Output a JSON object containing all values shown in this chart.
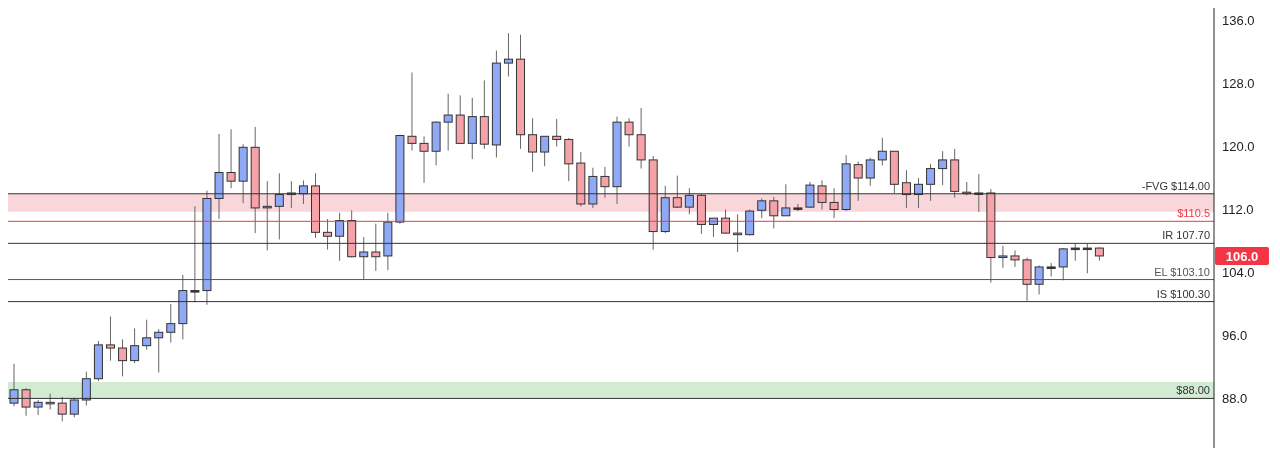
{
  "chart_data": {
    "type": "candlestick",
    "categories": [
      null,
      null,
      null,
      null,
      null,
      null,
      null,
      null,
      null,
      null,
      null,
      null,
      null,
      null,
      null,
      null,
      null,
      null,
      null,
      null,
      null,
      null,
      null,
      null,
      null,
      null,
      null,
      null,
      null,
      null,
      null,
      null,
      null,
      null,
      null,
      null,
      null,
      null,
      null,
      null,
      null,
      null,
      null,
      null,
      null,
      null,
      null,
      null,
      null,
      null,
      null,
      null,
      null,
      null,
      null,
      null,
      null,
      null,
      null,
      null,
      null,
      null,
      null,
      null,
      null,
      null,
      null,
      null,
      null,
      null,
      null,
      null,
      null,
      null,
      null,
      null,
      null,
      null,
      null,
      null,
      null,
      null,
      null,
      null,
      null,
      null,
      null,
      null,
      null,
      null,
      null,
      null,
      null,
      null,
      null,
      null,
      null,
      null,
      null,
      null
    ],
    "ohlc": [
      [
        87.4,
        92.4,
        87.0,
        89.1
      ],
      [
        89.1,
        89.3,
        85.8,
        86.9
      ],
      [
        86.9,
        87.8,
        85.9,
        87.5
      ],
      [
        87.5,
        88.6,
        86.6,
        87.4
      ],
      [
        87.4,
        88.2,
        85.1,
        86.0
      ],
      [
        86.0,
        88.1,
        85.6,
        87.8
      ],
      [
        87.8,
        91.4,
        87.1,
        90.5
      ],
      [
        90.5,
        95.3,
        90.2,
        94.8
      ],
      [
        94.8,
        98.4,
        92.8,
        94.4
      ],
      [
        94.4,
        95.5,
        90.8,
        92.8
      ],
      [
        92.8,
        96.9,
        92.5,
        94.7
      ],
      [
        94.7,
        98.0,
        94.2,
        95.7
      ],
      [
        95.7,
        96.8,
        91.3,
        96.4
      ],
      [
        96.4,
        100.0,
        95.1,
        97.5
      ],
      [
        97.5,
        103.7,
        95.5,
        101.7
      ],
      [
        101.7,
        112.4,
        100.2,
        101.7
      ],
      [
        101.7,
        114.4,
        99.9,
        113.4
      ],
      [
        113.4,
        121.6,
        110.8,
        116.7
      ],
      [
        116.7,
        122.2,
        114.7,
        115.6
      ],
      [
        115.6,
        120.3,
        112.8,
        119.9
      ],
      [
        119.9,
        122.5,
        109.0,
        112.2
      ],
      [
        112.3,
        115.6,
        106.8,
        112.4
      ],
      [
        112.4,
        116.6,
        108.2,
        113.9
      ],
      [
        113.9,
        115.6,
        112.2,
        114.1
      ],
      [
        114.0,
        115.7,
        112.7,
        115.0
      ],
      [
        115.0,
        116.6,
        108.4,
        109.1
      ],
      [
        109.1,
        110.8,
        106.9,
        108.6
      ],
      [
        108.6,
        111.6,
        105.5,
        110.6
      ],
      [
        110.6,
        111.9,
        105.9,
        106.0
      ],
      [
        106.0,
        108.5,
        103.1,
        106.6
      ],
      [
        106.6,
        110.2,
        104.2,
        106.0
      ],
      [
        106.1,
        111.6,
        104.3,
        110.4
      ],
      [
        110.4,
        121.5,
        110.2,
        121.4
      ],
      [
        121.3,
        129.4,
        119.5,
        120.4
      ],
      [
        120.4,
        121.3,
        115.4,
        119.4
      ],
      [
        119.4,
        123.2,
        117.6,
        123.1
      ],
      [
        123.1,
        126.7,
        119.5,
        124.0
      ],
      [
        124.0,
        126.5,
        120.4,
        120.4
      ],
      [
        120.4,
        126.2,
        118.4,
        123.8
      ],
      [
        123.8,
        128.4,
        119.7,
        120.3
      ],
      [
        120.2,
        132.2,
        118.6,
        130.6
      ],
      [
        130.6,
        134.4,
        128.9,
        131.1
      ],
      [
        131.1,
        134.2,
        119.7,
        121.5
      ],
      [
        121.5,
        123.6,
        116.8,
        119.3
      ],
      [
        119.3,
        121.3,
        117.5,
        121.3
      ],
      [
        121.3,
        123.5,
        120.0,
        120.9
      ],
      [
        120.9,
        121.1,
        115.6,
        117.8
      ],
      [
        117.9,
        119.3,
        112.4,
        112.7
      ],
      [
        112.7,
        117.3,
        112.2,
        116.2
      ],
      [
        116.2,
        117.4,
        113.5,
        114.9
      ],
      [
        114.9,
        123.8,
        112.7,
        123.1
      ],
      [
        123.1,
        123.6,
        120.0,
        121.5
      ],
      [
        121.5,
        124.9,
        117.2,
        118.3
      ],
      [
        118.3,
        118.8,
        106.9,
        109.2
      ],
      [
        109.2,
        115.0,
        109.0,
        113.5
      ],
      [
        113.5,
        116.3,
        112.2,
        112.3
      ],
      [
        112.3,
        114.7,
        111.4,
        113.8
      ],
      [
        113.8,
        114.0,
        108.9,
        110.1
      ],
      [
        110.1,
        110.9,
        108.5,
        110.9
      ],
      [
        110.9,
        112.0,
        108.9,
        109.0
      ],
      [
        109.0,
        111.4,
        106.6,
        108.8
      ],
      [
        108.8,
        112.0,
        108.7,
        111.8
      ],
      [
        111.9,
        113.4,
        110.9,
        113.1
      ],
      [
        113.1,
        113.6,
        109.6,
        111.2
      ],
      [
        111.2,
        115.2,
        111.2,
        112.2
      ],
      [
        112.2,
        112.7,
        111.8,
        112.2
      ],
      [
        112.3,
        115.5,
        112.2,
        115.1
      ],
      [
        115.0,
        115.7,
        112.0,
        112.9
      ],
      [
        112.9,
        114.7,
        110.9,
        112.0
      ],
      [
        112.0,
        118.9,
        111.8,
        117.8
      ],
      [
        117.7,
        118.1,
        113.1,
        116.0
      ],
      [
        116.0,
        118.6,
        115.0,
        118.3
      ],
      [
        118.3,
        121.1,
        117.6,
        119.4
      ],
      [
        119.4,
        119.4,
        114.1,
        115.2
      ],
      [
        115.4,
        117.0,
        112.2,
        113.9
      ],
      [
        113.9,
        116.0,
        112.2,
        115.2
      ],
      [
        115.2,
        117.8,
        113.1,
        117.2
      ],
      [
        117.2,
        119.4,
        115.1,
        118.3
      ],
      [
        118.3,
        119.7,
        113.5,
        114.3
      ],
      [
        114.2,
        115.5,
        113.8,
        114.1
      ],
      [
        114.1,
        116.5,
        111.7,
        114.1
      ],
      [
        114.1,
        114.6,
        102.7,
        105.9
      ],
      [
        105.9,
        107.4,
        104.6,
        106.1
      ],
      [
        106.1,
        106.8,
        104.7,
        105.6
      ],
      [
        105.6,
        105.9,
        100.4,
        102.5
      ],
      [
        102.5,
        104.9,
        101.2,
        104.7
      ],
      [
        104.7,
        105.2,
        103.5,
        104.7
      ],
      [
        104.7,
        107.1,
        103.0,
        107.0
      ],
      [
        107.1,
        107.7,
        105.5,
        107.1
      ],
      [
        107.1,
        107.7,
        103.9,
        107.1
      ],
      [
        107.1,
        107.2,
        105.5,
        106.1
      ],
      null,
      null,
      null,
      null,
      null,
      null,
      null,
      null,
      null
    ],
    "colors": [
      "#8fa9f7",
      "#f5a3a9",
      "#8fa9f7",
      "#f5a3a9",
      "#f5a3a9",
      "#8fa9f7",
      "#8fa9f7",
      "#8fa9f7",
      "#f5a3a9",
      "#f5a3a9",
      "#8fa9f7",
      "#8fa9f7",
      "#8fa9f7",
      "#8fa9f7",
      "#8fa9f7",
      "#333333",
      "#8fa9f7",
      "#8fa9f7",
      "#f5a3a9",
      "#8fa9f7",
      "#f5a3a9",
      "#8fa9f7",
      "#8fa9f7",
      "#8fa9f7",
      "#8fa9f7",
      "#f5a3a9",
      "#f5a3a9",
      "#8fa9f7",
      "#f5a3a9",
      "#8fa9f7",
      "#f5a3a9",
      "#8fa9f7",
      "#8fa9f7",
      "#f5a3a9",
      "#f5a3a9",
      "#8fa9f7",
      "#8fa9f7",
      "#f5a3a9",
      "#8fa9f7",
      "#f5a3a9",
      "#8fa9f7",
      "#8fa9f7",
      "#f5a3a9",
      "#f5a3a9",
      "#8fa9f7",
      "#f5a3a9",
      "#f5a3a9",
      "#f5a3a9",
      "#8fa9f7",
      "#f5a3a9",
      "#8fa9f7",
      "#f5a3a9",
      "#f5a3a9",
      "#f5a3a9",
      "#8fa9f7",
      "#f5a3a9",
      "#8fa9f7",
      "#f5a3a9",
      "#8fa9f7",
      "#f5a3a9",
      "#f5a3a9",
      "#8fa9f7",
      "#8fa9f7",
      "#f5a3a9",
      "#8fa9f7",
      "#333333",
      "#8fa9f7",
      "#f5a3a9",
      "#f5a3a9",
      "#8fa9f7",
      "#f5a3a9",
      "#8fa9f7",
      "#8fa9f7",
      "#f5a3a9",
      "#f5a3a9",
      "#8fa9f7",
      "#8fa9f7",
      "#8fa9f7",
      "#f5a3a9",
      "#f5a3a9",
      "#333333",
      "#f5a3a9",
      "#8fa9f7",
      "#f5a3a9",
      "#f5a3a9",
      "#8fa9f7",
      "#333333",
      "#8fa9f7",
      "#333333",
      "#333333",
      "#f5a3a9",
      null,
      null,
      null,
      null,
      null,
      null,
      null,
      null,
      null
    ],
    "ylim": [
      81.7,
      137.6
    ],
    "yticks": [
      {
        "value": 88,
        "label": "88.0"
      },
      {
        "value": 96,
        "label": "96.0"
      },
      {
        "value": 104,
        "label": "104.0"
      },
      {
        "value": 112,
        "label": "112.0"
      },
      {
        "value": 120,
        "label": "120.0"
      },
      {
        "value": 128,
        "label": "128.0"
      },
      {
        "value": 136,
        "label": "136.0"
      }
    ],
    "tick_labels": "y",
    "grid": false,
    "bands": [
      {
        "axis": "y",
        "from": 111.7,
        "to": 114.0,
        "color": "#f7c5c9"
      },
      {
        "axis": "y",
        "from": 88.0,
        "to": 90.1,
        "color": "#bfe3c0"
      }
    ],
    "ref_lines": [
      {
        "axis": "y",
        "value": 114.0,
        "label": "-FVG $114.00",
        "color": "#333333"
      },
      {
        "axis": "y",
        "value": 110.5,
        "label": "$110.5",
        "color": "#f23645"
      },
      {
        "axis": "y",
        "value": 107.7,
        "label": "IR 107.70",
        "color": "#333333"
      },
      {
        "axis": "y",
        "value": 103.1,
        "label": "EL $103.10",
        "color": "#555555"
      },
      {
        "axis": "y",
        "value": 100.3,
        "label": "IS $100.30",
        "color": "#333333"
      },
      {
        "axis": "y",
        "value": 88.0,
        "label": "$88.00",
        "color": "#333333"
      }
    ],
    "annotations": [
      "106.0"
    ]
  }
}
